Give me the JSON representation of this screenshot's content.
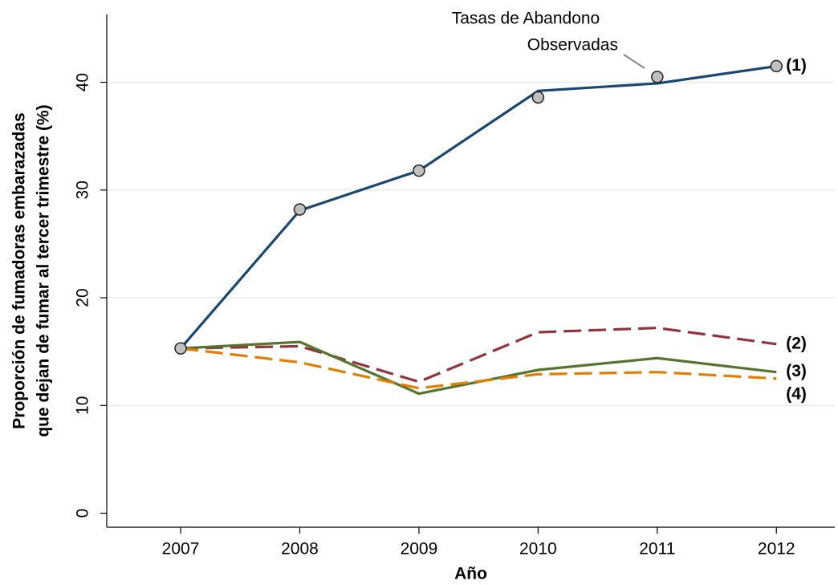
{
  "chart_data": {
    "type": "line",
    "x_label": "Año",
    "y_label": [
      "Proporción de fumadoras embarazadas",
      "que dejan de fumar al tercer trimestre (%)"
    ],
    "x": [
      2007,
      2008,
      2009,
      2010,
      2011,
      2012
    ],
    "xlim": [
      2006.38,
      2012.49
    ],
    "xticks": [
      2007,
      2008,
      2009,
      2010,
      2011,
      2012
    ],
    "ylim": [
      -1.3,
      46.3
    ],
    "yticks": [
      0,
      10,
      20,
      30,
      40
    ],
    "grid": true,
    "series": [
      {
        "name": "(1)",
        "color": "#1a476f",
        "dash": false,
        "values": [
          15.3,
          28.1,
          31.8,
          39.2,
          39.9,
          41.5
        ]
      },
      {
        "name": "(2)",
        "color": "#90353b",
        "dash": true,
        "values": [
          15.3,
          15.5,
          12.2,
          16.8,
          17.2,
          15.7
        ]
      },
      {
        "name": "(3)",
        "color": "#55752f",
        "dash": false,
        "values": [
          15.3,
          15.9,
          11.1,
          13.3,
          14.4,
          13.1
        ]
      },
      {
        "name": "(4)",
        "color": "#e37e00",
        "dash": true,
        "values": [
          15.3,
          14.0,
          11.6,
          12.9,
          13.1,
          12.5
        ]
      }
    ],
    "observed": {
      "color": "#c0c0c0",
      "values": [
        15.3,
        28.2,
        31.8,
        38.6,
        40.5,
        41.5
      ]
    },
    "annotation": [
      "Tasas de Abandono",
      "Observadas"
    ]
  }
}
